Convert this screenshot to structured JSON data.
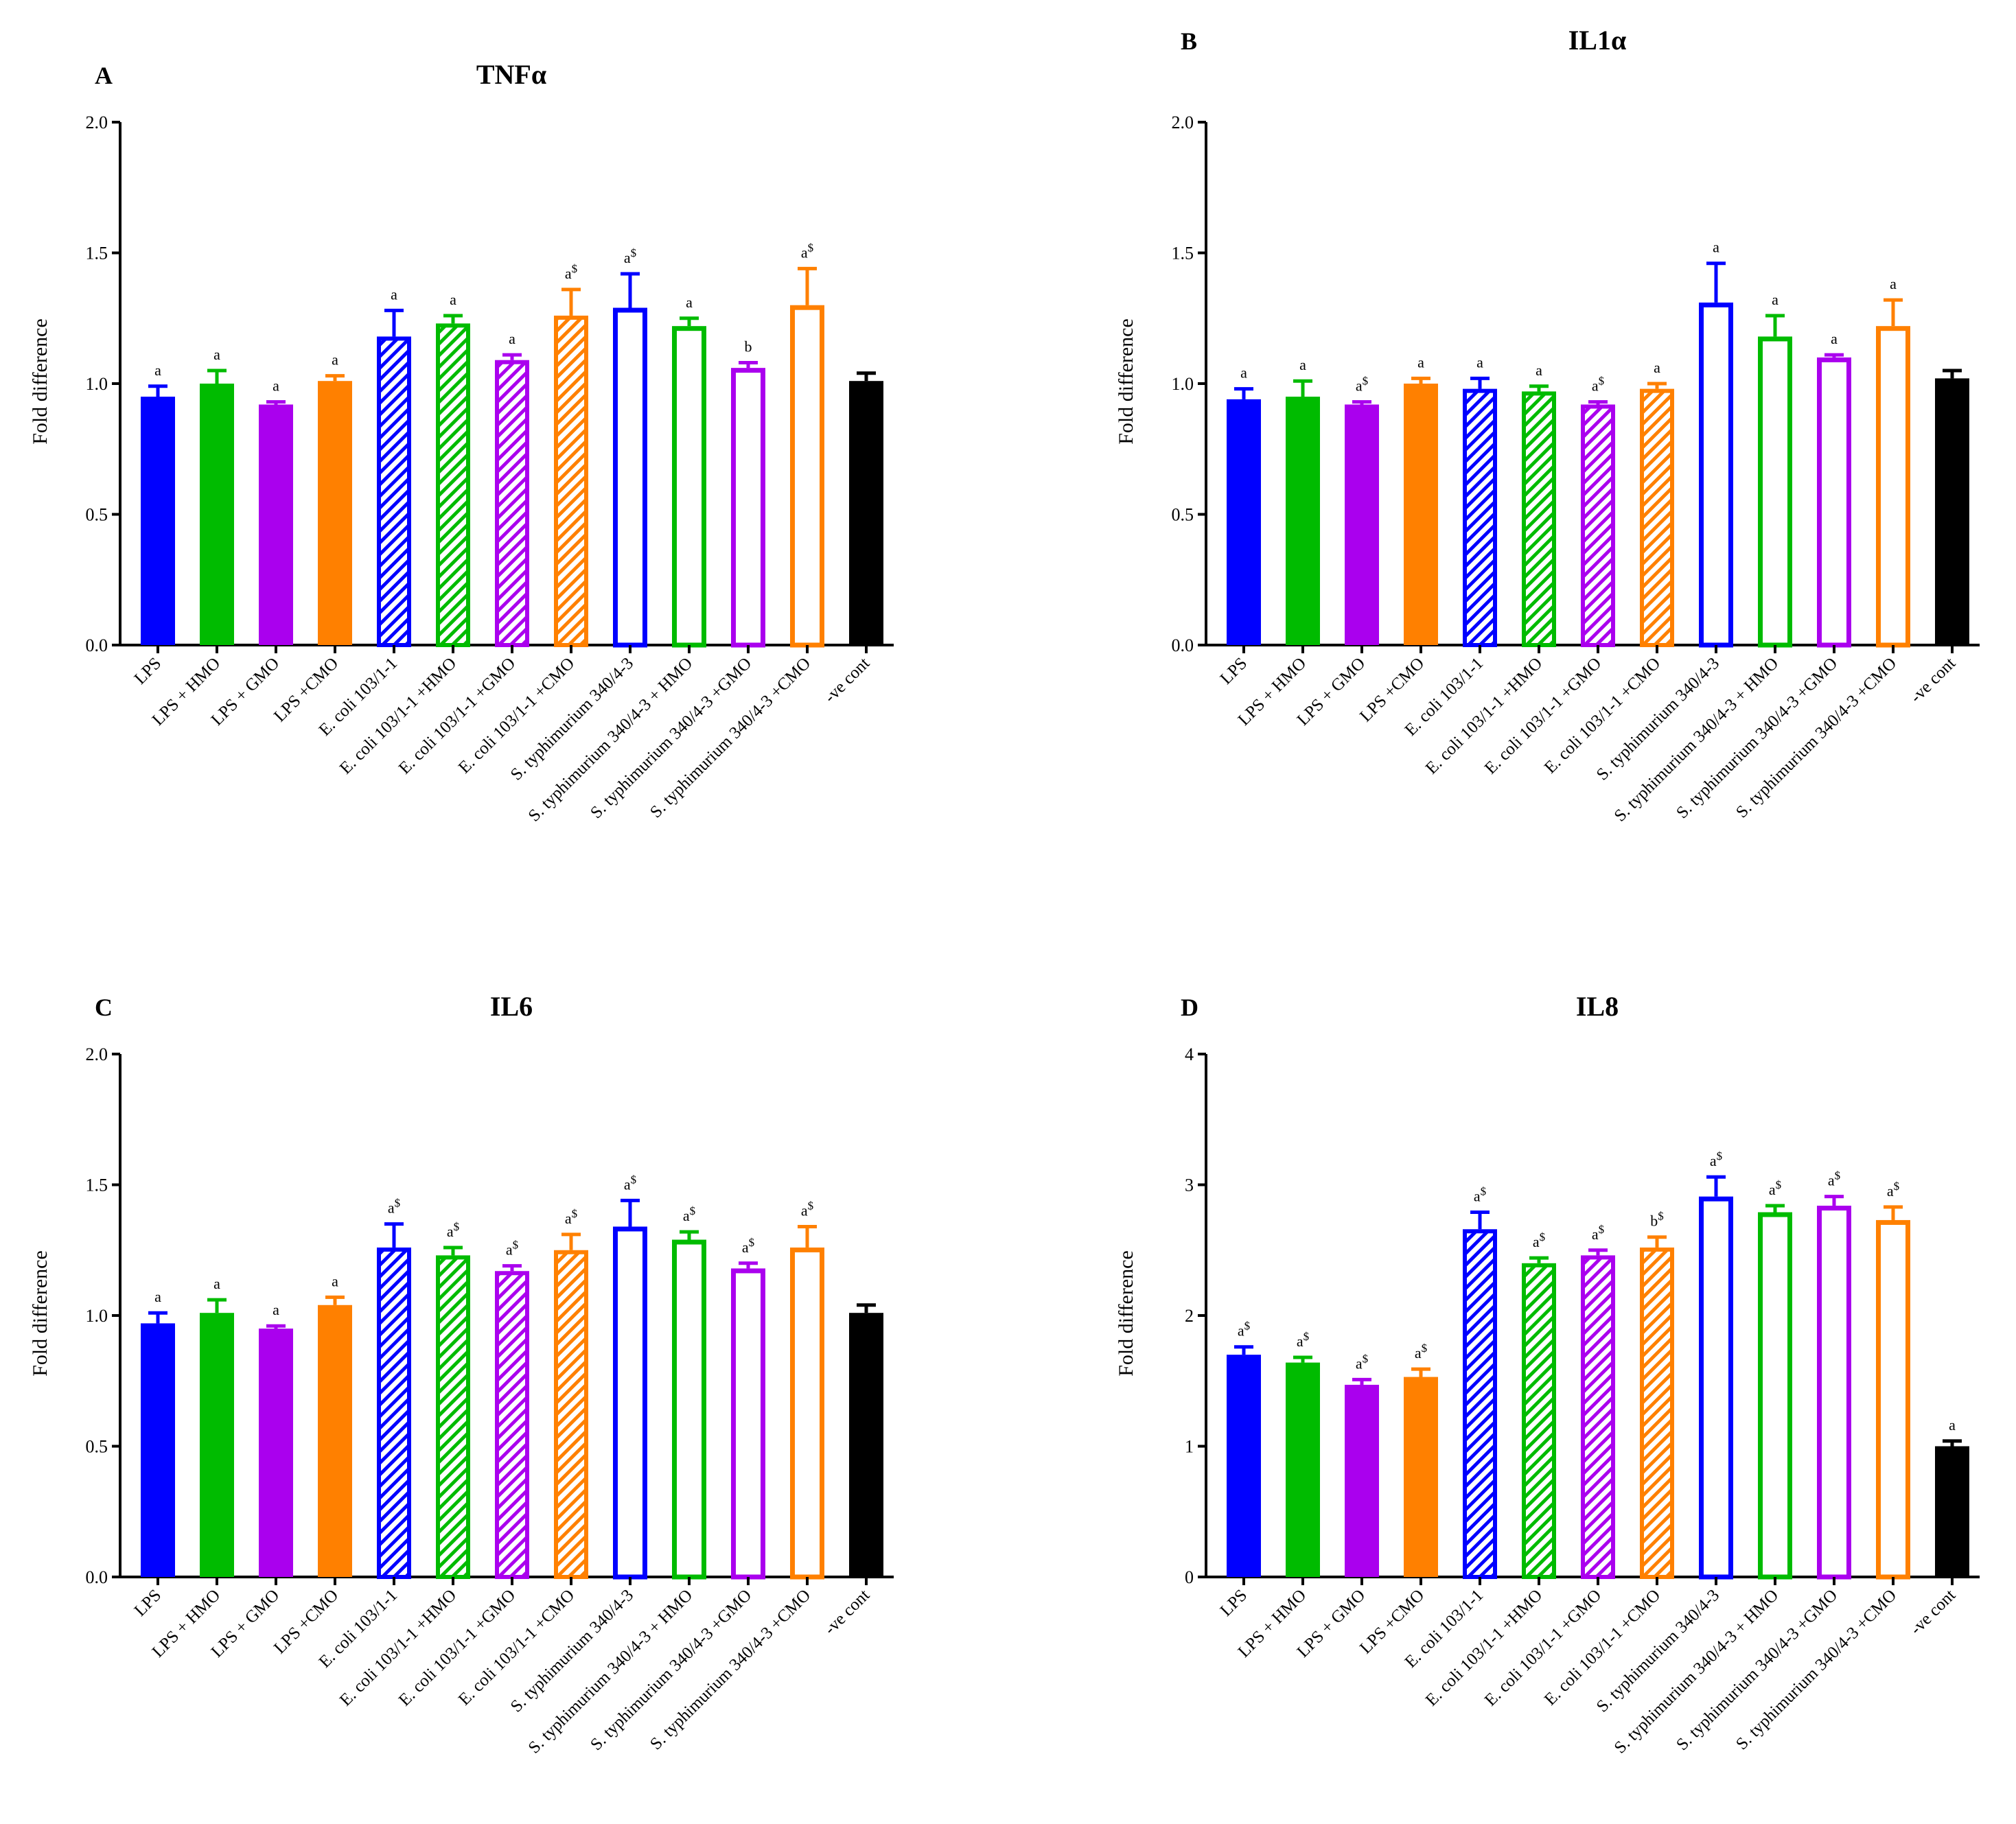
{
  "chart_data": [
    {
      "type": "bar",
      "panel": "A",
      "title": "TNFα",
      "xlabel": "",
      "ylabel": "Fold difference",
      "ylim": [
        0,
        2.0
      ],
      "yticks": [
        "0.0",
        "0.5",
        "1.0",
        "1.5",
        "2.0"
      ],
      "categories": [
        "LPS",
        "LPS + HMO",
        "LPS + GMO",
        "LPS +CMO",
        "E. coli 103/1-1",
        "E. coli 103/1-1 +HMO",
        "E. coli 103/1-1 +GMO",
        "E. coli 103/1-1 +CMO",
        "S. typhimurium 340/4-3",
        "S. typhimurium 340/4-3 + HMO",
        "S. typhimurium 340/4-3 +GMO",
        "S. typhimurium 340/4-3 +CMO",
        "-ve cont"
      ],
      "values": [
        0.95,
        1.0,
        0.92,
        1.01,
        1.18,
        1.23,
        1.09,
        1.26,
        1.29,
        1.22,
        1.06,
        1.3,
        1.01
      ],
      "errors": [
        0.04,
        0.05,
        0.01,
        0.02,
        0.1,
        0.03,
        0.02,
        0.1,
        0.13,
        0.03,
        0.02,
        0.14,
        0.03
      ],
      "annotations": [
        "a",
        "a",
        "a",
        "a",
        "a",
        "a",
        "a",
        "a$",
        "a$",
        "a",
        "b",
        "a$",
        ""
      ],
      "fills": [
        "solid",
        "solid",
        "solid",
        "solid",
        "hatched",
        "hatched",
        "hatched",
        "hatched",
        "open",
        "open",
        "open",
        "open",
        "solid"
      ],
      "colors": [
        "#0000ff",
        "#00bb00",
        "#aa00ee",
        "#ff8000",
        "#0000ff",
        "#00bb00",
        "#aa00ee",
        "#ff8000",
        "#0000ff",
        "#00bb00",
        "#aa00ee",
        "#ff8000",
        "#000000"
      ]
    },
    {
      "type": "bar",
      "panel": "B",
      "title": "IL1α",
      "xlabel": "",
      "ylabel": "Fold difference",
      "ylim": [
        0,
        2.0
      ],
      "yticks": [
        "0.0",
        "0.5",
        "1.0",
        "1.5",
        "2.0"
      ],
      "categories": [
        "LPS",
        "LPS + HMO",
        "LPS + GMO",
        "LPS +CMO",
        "E. coli 103/1-1",
        "E. coli 103/1-1 +HMO",
        "E. coli 103/1-1 +GMO",
        "E. coli 103/1-1 +CMO",
        "S. typhimurium 340/4-3",
        "S. typhimurium 340/4-3 + HMO",
        "S. typhimurium 340/4-3 +GMO",
        "S. typhimurium 340/4-3 +CMO",
        "-ve cont"
      ],
      "values": [
        0.94,
        0.95,
        0.92,
        1.0,
        0.98,
        0.97,
        0.92,
        0.98,
        1.31,
        1.18,
        1.1,
        1.22,
        1.02
      ],
      "errors": [
        0.04,
        0.06,
        0.01,
        0.02,
        0.04,
        0.02,
        0.01,
        0.02,
        0.15,
        0.08,
        0.01,
        0.1,
        0.03
      ],
      "annotations": [
        "a",
        "a",
        "a$",
        "a",
        "a",
        "a",
        "a$",
        "a",
        "a",
        "a",
        "a",
        "a",
        ""
      ],
      "fills": [
        "solid",
        "solid",
        "solid",
        "solid",
        "hatched",
        "hatched",
        "hatched",
        "hatched",
        "open",
        "open",
        "open",
        "open",
        "solid"
      ],
      "colors": [
        "#0000ff",
        "#00bb00",
        "#aa00ee",
        "#ff8000",
        "#0000ff",
        "#00bb00",
        "#aa00ee",
        "#ff8000",
        "#0000ff",
        "#00bb00",
        "#aa00ee",
        "#ff8000",
        "#000000"
      ]
    },
    {
      "type": "bar",
      "panel": "C",
      "title": "IL6",
      "xlabel": "",
      "ylabel": "Fold difference",
      "ylim": [
        0,
        2.0
      ],
      "yticks": [
        "0.0",
        "0.5",
        "1.0",
        "1.5",
        "2.0"
      ],
      "categories": [
        "LPS",
        "LPS + HMO",
        "LPS + GMO",
        "LPS +CMO",
        "E. coli 103/1-1",
        "E. coli 103/1-1 +HMO",
        "E. coli 103/1-1 +GMO",
        "E. coli 103/1-1 +CMO",
        "S. typhimurium 340/4-3",
        "S. typhimurium 340/4-3 + HMO",
        "S. typhimurium 340/4-3 +GMO",
        "S. typhimurium 340/4-3 +CMO",
        "-ve cont"
      ],
      "values": [
        0.97,
        1.01,
        0.95,
        1.04,
        1.26,
        1.23,
        1.17,
        1.25,
        1.34,
        1.29,
        1.18,
        1.26,
        1.01
      ],
      "errors": [
        0.04,
        0.05,
        0.01,
        0.03,
        0.09,
        0.03,
        0.02,
        0.06,
        0.1,
        0.03,
        0.02,
        0.08,
        0.03
      ],
      "annotations": [
        "a",
        "a",
        "a",
        "a",
        "a$",
        "a$",
        "a$",
        "a$",
        "a$",
        "a$",
        "a$",
        "a$",
        ""
      ],
      "fills": [
        "solid",
        "solid",
        "solid",
        "solid",
        "hatched",
        "hatched",
        "hatched",
        "hatched",
        "open",
        "open",
        "open",
        "open",
        "solid"
      ],
      "colors": [
        "#0000ff",
        "#00bb00",
        "#aa00ee",
        "#ff8000",
        "#0000ff",
        "#00bb00",
        "#aa00ee",
        "#ff8000",
        "#0000ff",
        "#00bb00",
        "#aa00ee",
        "#ff8000",
        "#000000"
      ]
    },
    {
      "type": "bar",
      "panel": "D",
      "title": "IL8",
      "xlabel": "",
      "ylabel": "Fold difference",
      "ylim": [
        0,
        4
      ],
      "yticks": [
        "0",
        "1",
        "2",
        "3",
        "4"
      ],
      "categories": [
        "LPS",
        "LPS + HMO",
        "LPS + GMO",
        "LPS +CMO",
        "E. coli 103/1-1",
        "E. coli 103/1-1 +HMO",
        "E. coli 103/1-1 +GMO",
        "E. coli 103/1-1 +CMO",
        "S. typhimurium 340/4-3",
        "S. typhimurium 340/4-3 + HMO",
        "S. typhimurium 340/4-3 +GMO",
        "S. typhimurium 340/4-3 +CMO",
        "-ve cont"
      ],
      "values": [
        1.7,
        1.64,
        1.47,
        1.53,
        2.66,
        2.4,
        2.46,
        2.52,
        2.91,
        2.79,
        2.84,
        2.73,
        1.0
      ],
      "errors": [
        0.06,
        0.04,
        0.04,
        0.06,
        0.13,
        0.04,
        0.04,
        0.08,
        0.15,
        0.05,
        0.07,
        0.1,
        0.04
      ],
      "annotations": [
        "a$",
        "a$",
        "a$",
        "a$",
        "a$",
        "a$",
        "a$",
        "b$",
        "a$",
        "a$",
        "a$",
        "a$",
        "a"
      ],
      "fills": [
        "solid",
        "solid",
        "solid",
        "solid",
        "hatched",
        "hatched",
        "hatched",
        "hatched",
        "open",
        "open",
        "open",
        "open",
        "solid"
      ],
      "colors": [
        "#0000ff",
        "#00bb00",
        "#aa00ee",
        "#ff8000",
        "#0000ff",
        "#00bb00",
        "#aa00ee",
        "#ff8000",
        "#0000ff",
        "#00bb00",
        "#aa00ee",
        "#ff8000",
        "#000000"
      ]
    }
  ]
}
